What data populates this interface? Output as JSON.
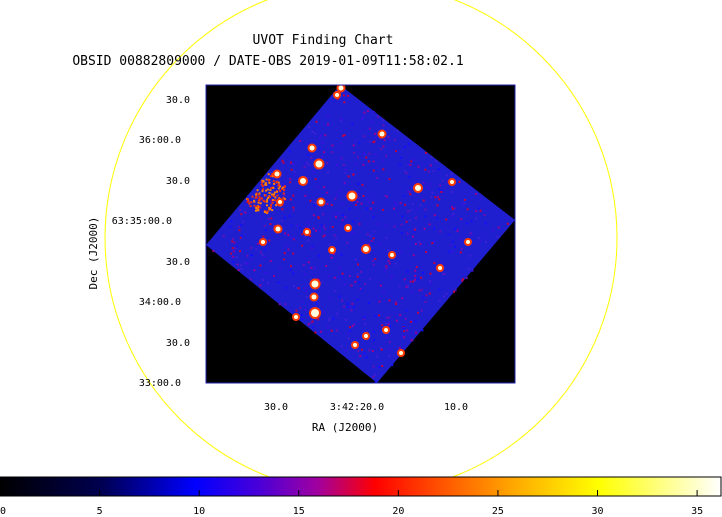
{
  "chart_data": {
    "type": "heatmap",
    "title": "UVOT Finding Chart",
    "subtitle": "OBSID 00882809000 / DATE-OBS 2019-01-09T11:58:02.1",
    "xlabel": "RA (J2000)",
    "ylabel": "Dec (J2000)",
    "x_ticks": [
      "30.0",
      "3:42:20.0",
      "10.0"
    ],
    "y_ticks": [
      "33:00.0",
      "30.0",
      "34:00.0",
      "30.0",
      "63:35:00.0",
      "30.0",
      "36:00.0",
      "30.0"
    ],
    "colorbar": {
      "ticks": [
        "0",
        "5",
        "10",
        "15",
        "20",
        "25",
        "30",
        "35"
      ],
      "range": [
        0,
        36.2
      ],
      "colormap": "heat (black-blue-red-yellow-white)"
    },
    "grid": false
  },
  "colors": {
    "circle": "#ffff00",
    "background": "#000000",
    "field": "#1f1fd0"
  }
}
